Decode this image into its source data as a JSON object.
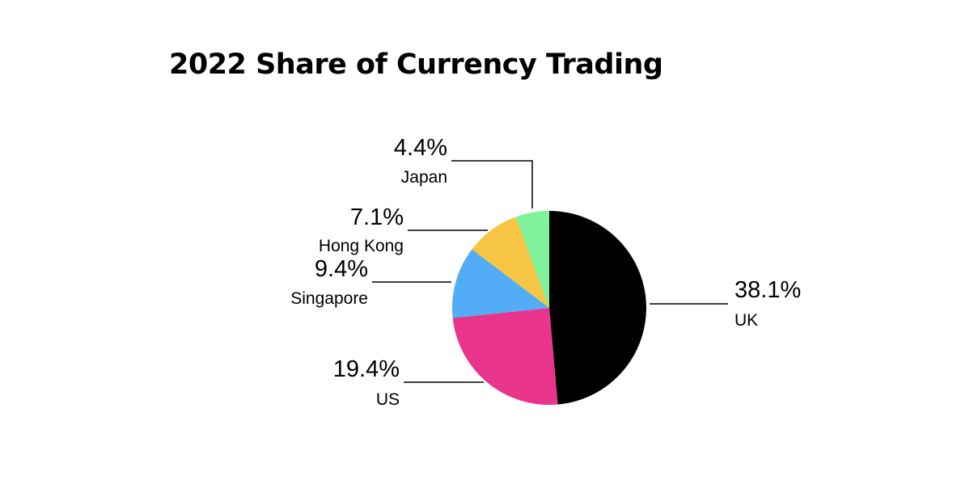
{
  "chart_data": {
    "type": "pie",
    "title": "2022 Share of Currency Trading",
    "categories": [
      "UK",
      "US",
      "Singapore",
      "Hong Kong",
      "Japan"
    ],
    "values": [
      38.1,
      19.4,
      9.4,
      7.1,
      4.4
    ],
    "labels": [
      "38.1%",
      "19.4%",
      "9.4%",
      "7.1%",
      "4.4%"
    ],
    "colors": [
      "#000000",
      "#e8348b",
      "#52acf6",
      "#f6c544",
      "#7ff29c"
    ],
    "start_angle_deg": 0,
    "direction": "clockwise",
    "legend": "none"
  }
}
